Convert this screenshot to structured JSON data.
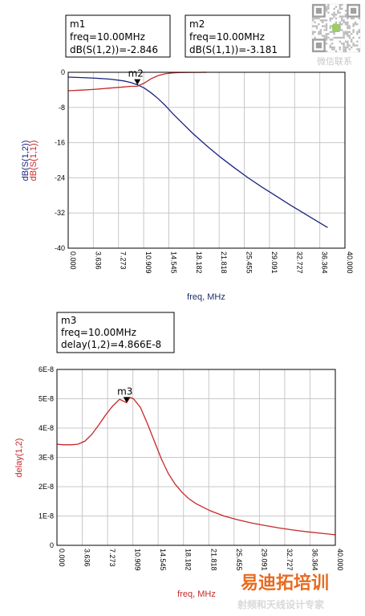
{
  "chart_data": [
    {
      "type": "line",
      "xlabel": "freq, MHz",
      "ylabel_series": [
        "dB(S(1,2))",
        "dB(S(1,1))"
      ],
      "xlim": [
        0,
        40
      ],
      "ylim": [
        -40,
        0
      ],
      "x_ticks": [
        "0.000",
        "3.636",
        "7.273",
        "10.909",
        "14.545",
        "18.182",
        "21.818",
        "25.455",
        "29.091",
        "32.727",
        "36.364",
        "40.000"
      ],
      "y_ticks": [
        "0",
        "-8",
        "-16",
        "-24",
        "-32",
        "-40"
      ],
      "grid": true,
      "series": [
        {
          "name": "dB(S(1,2))",
          "color": "#1a237e",
          "x": [
            0,
            2,
            4,
            6,
            8,
            9,
            10,
            11,
            12,
            13,
            14,
            15,
            16,
            18,
            20,
            22,
            24,
            26,
            28,
            30,
            32,
            34,
            36,
            37.5
          ],
          "y": [
            -1.1,
            -1.2,
            -1.35,
            -1.55,
            -1.95,
            -2.3,
            -2.846,
            -3.6,
            -4.7,
            -6.0,
            -7.5,
            -9.2,
            -10.8,
            -13.9,
            -16.7,
            -19.3,
            -21.7,
            -24.0,
            -26.1,
            -28.1,
            -30.1,
            -32.0,
            -33.9,
            -35.3
          ]
        },
        {
          "name": "dB(S(1,1))",
          "color": "#c62828",
          "x": [
            0,
            2,
            4,
            6,
            8,
            9,
            10,
            11,
            12,
            13,
            14,
            15,
            16,
            17,
            18,
            19,
            20
          ],
          "y": [
            -4.2,
            -4.05,
            -3.85,
            -3.6,
            -3.35,
            -3.2,
            -3.181,
            -2.45,
            -1.45,
            -0.75,
            -0.35,
            -0.15,
            -0.07,
            -0.04,
            -0.02,
            -0.01,
            0
          ]
        }
      ],
      "markers": [
        {
          "id": "m1",
          "label": "m2",
          "x": 10.0,
          "series": "dB(S(1,2))",
          "lines": [
            "m1",
            "freq=10.00MHz",
            "dB(S(1,2))=-2.846"
          ]
        },
        {
          "id": "m2",
          "x": 10.0,
          "series": "dB(S(1,1))",
          "lines": [
            "m2",
            "freq=10.00MHz",
            "dB(S(1,1))=-3.181"
          ]
        }
      ]
    },
    {
      "type": "line",
      "xlabel": "freq, MHz",
      "ylabel": "delay(1,2)",
      "xlim": [
        0,
        40
      ],
      "ylim": [
        0,
        6e-08
      ],
      "x_ticks": [
        "0.000",
        "3.636",
        "7.273",
        "10.909",
        "14.545",
        "18.182",
        "21.818",
        "25.455",
        "29.091",
        "32.727",
        "36.364",
        "40.000"
      ],
      "y_ticks": [
        "0",
        "1E-8",
        "2E-8",
        "3E-8",
        "4E-8",
        "5E-8",
        "6E-8"
      ],
      "grid": true,
      "series": [
        {
          "name": "delay(1,2)",
          "color": "#c62828",
          "x": [
            0,
            1,
            2,
            3,
            4,
            5,
            6,
            7,
            8,
            9,
            10,
            10.5,
            11,
            12,
            13,
            14,
            15,
            16,
            17,
            18,
            19,
            20,
            22,
            24,
            26,
            28,
            30,
            32,
            34,
            36,
            38,
            40
          ],
          "y": [
            3.45e-08,
            3.43e-08,
            3.43e-08,
            3.45e-08,
            3.55e-08,
            3.78e-08,
            4.1e-08,
            4.45e-08,
            4.75e-08,
            4.98e-08,
            4.866e-08,
            5.05e-08,
            5e-08,
            4.7e-08,
            4.15e-08,
            3.55e-08,
            2.95e-08,
            2.45e-08,
            2.08e-08,
            1.8e-08,
            1.58e-08,
            1.42e-08,
            1.18e-08,
            1e-08,
            8.7e-09,
            7.6e-09,
            6.7e-09,
            5.9e-09,
            5.2e-09,
            4.6e-09,
            4.1e-09,
            3.6e-09
          ]
        }
      ],
      "markers": [
        {
          "id": "m3",
          "label": "m3",
          "x": 10.0,
          "series": "delay(1,2)",
          "lines": [
            "m3",
            "freq=10.00MHz",
            "delay(1,2)=4.866E-8"
          ]
        }
      ]
    }
  ],
  "watermark": {
    "qr_label": "微信联系",
    "brand_main": "易迪拓培训",
    "brand_sub": "射频和天线设计专家"
  },
  "colors": {
    "axis": "#000000",
    "grid": "#c8c8c8",
    "s12": "#1a237e",
    "s11": "#c62828",
    "ylabel_s12": "#1a237e",
    "ylabel_s11": "#c62828",
    "ylabel_delay": "#c62828",
    "xlabel_top": "#1f2f6b",
    "xlabel_bottom": "#c62828"
  }
}
